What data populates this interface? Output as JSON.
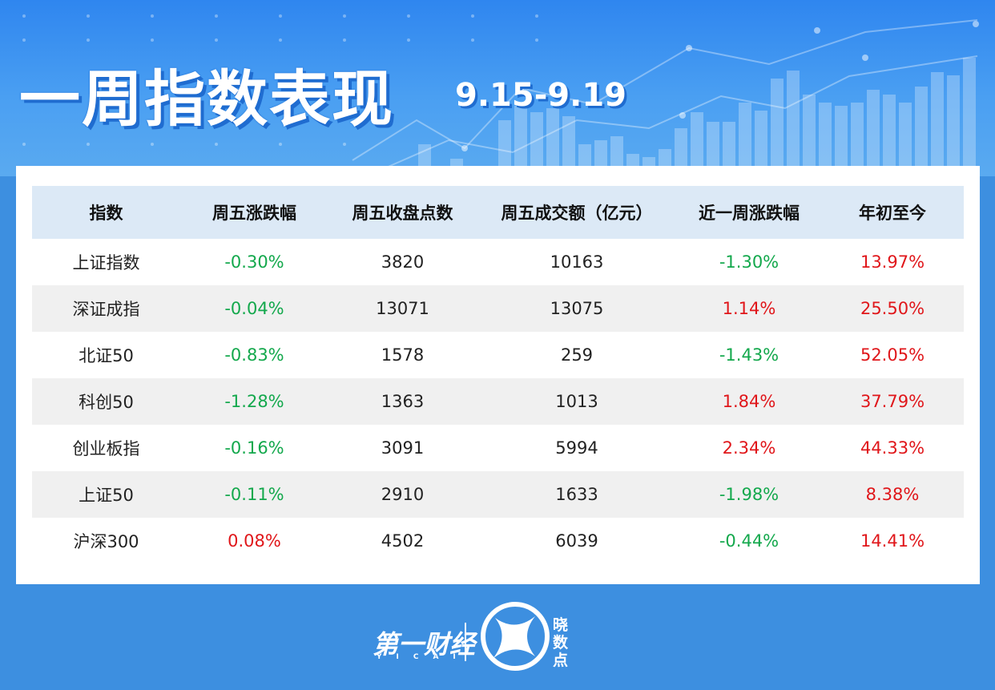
{
  "header": {
    "title": "一周指数表现",
    "date_range": "9.15-9.19"
  },
  "table": {
    "columns": [
      "指数",
      "周五涨跌幅",
      "周五收盘点数",
      "周五成交额（亿元）",
      "近一周涨跌幅",
      "年初至今"
    ],
    "rows": [
      {
        "name": "上证指数",
        "fri_change": "-0.30%",
        "fri_close": "3820",
        "fri_turnover": "10163",
        "week_change": "-1.30%",
        "ytd": "13.97%"
      },
      {
        "name": "深证成指",
        "fri_change": "-0.04%",
        "fri_close": "13071",
        "fri_turnover": "13075",
        "week_change": "1.14%",
        "ytd": "25.50%"
      },
      {
        "name": "北证50",
        "fri_change": "-0.83%",
        "fri_close": "1578",
        "fri_turnover": "259",
        "week_change": "-1.43%",
        "ytd": "52.05%"
      },
      {
        "name": "科创50",
        "fri_change": "-1.28%",
        "fri_close": "1363",
        "fri_turnover": "1013",
        "week_change": "1.84%",
        "ytd": "37.79%"
      },
      {
        "name": "创业板指",
        "fri_change": "-0.16%",
        "fri_close": "3091",
        "fri_turnover": "5994",
        "week_change": "2.34%",
        "ytd": "44.33%"
      },
      {
        "name": "上证50",
        "fri_change": "-0.11%",
        "fri_close": "2910",
        "fri_turnover": "1633",
        "week_change": "-1.98%",
        "ytd": "8.38%"
      },
      {
        "name": "沪深300",
        "fri_change": "0.08%",
        "fri_close": "4502",
        "fri_turnover": "6039",
        "week_change": "-0.44%",
        "ytd": "14.41%"
      }
    ]
  },
  "footer": {
    "brand": "第一财经",
    "brand_sub": "YICAI",
    "sub_brand_1": "晓",
    "sub_brand_2": "数",
    "sub_brand_3": "点"
  },
  "colors": {
    "positive": "#e0161a",
    "negative": "#13a84c",
    "header_bg": "#dce9f6",
    "page_bg": "#3d8fe0"
  }
}
